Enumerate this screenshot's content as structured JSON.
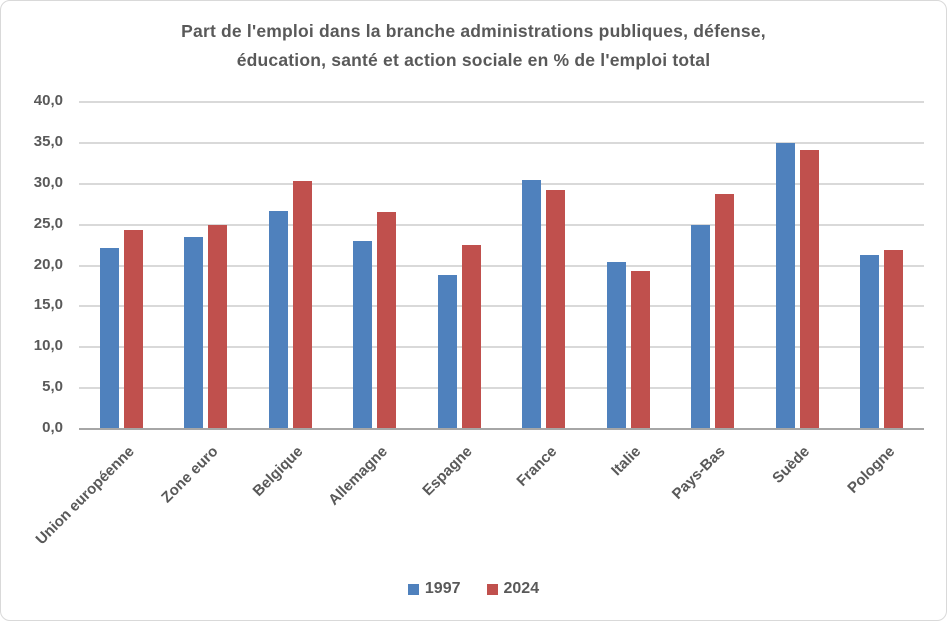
{
  "chart": {
    "title_line1": "Part de l'emploi dans la branche administrations publiques, défense,",
    "title_line2": "éducation, santé et action sociale en % de l'emploi total"
  },
  "chart_data": {
    "type": "bar",
    "title": "Part de l'emploi dans la branche administrations publiques, défense, éducation, santé et action sociale en % de l'emploi total",
    "categories": [
      "Union européenne",
      "Zone euro",
      "Belgique",
      "Allemagne",
      "Espagne",
      "France",
      "Italie",
      "Pays-Bas",
      "Suède",
      "Pologne"
    ],
    "series": [
      {
        "name": "1997",
        "color": "#4f81bd",
        "values": [
          22.1,
          23.5,
          26.7,
          23.0,
          18.8,
          30.4,
          20.4,
          24.9,
          35.0,
          21.3
        ]
      },
      {
        "name": "2024",
        "color": "#c0504d",
        "values": [
          24.3,
          25.0,
          30.3,
          26.5,
          22.5,
          29.2,
          19.3,
          28.8,
          34.1,
          21.9
        ]
      }
    ],
    "xlabel": "",
    "ylabel": "",
    "ylim": [
      0,
      40
    ],
    "y_tick_step": 5,
    "y_tick_labels": [
      "0,0",
      "5,0",
      "10,0",
      "15,0",
      "20,0",
      "25,0",
      "30,0",
      "35,0",
      "40,0"
    ],
    "grid": true,
    "legend_position": "bottom",
    "colors": {
      "grid": "#d9d9d9",
      "axis": "#a6a6a6",
      "text": "#595959",
      "background": "#ffffff"
    }
  }
}
